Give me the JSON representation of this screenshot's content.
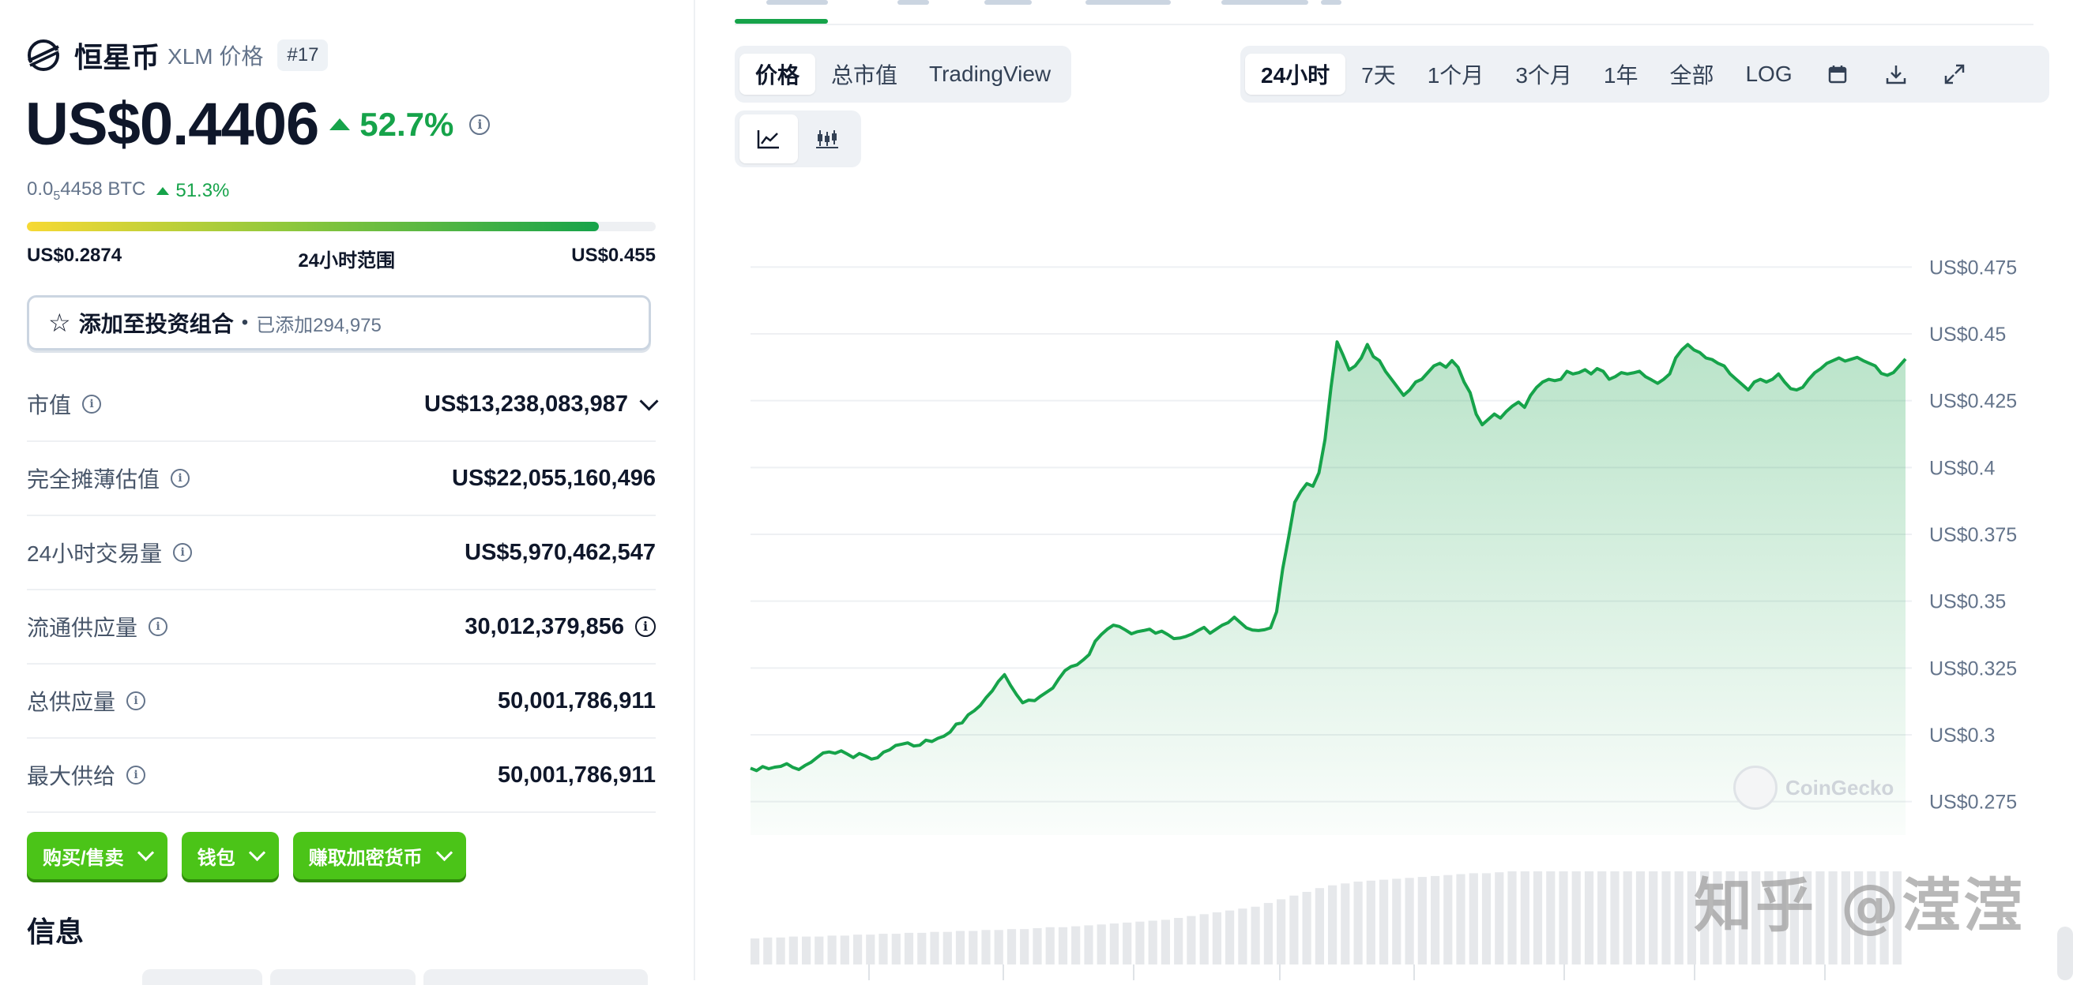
{
  "coin": {
    "name": "恒星币",
    "subtitle": "XLM 价格",
    "rank": "#17",
    "price": "US$0.4406",
    "change_24h": "52.7%",
    "btc_price_prefix": "0.0",
    "btc_price_sub": "5",
    "btc_price_suffix": "4458 BTC",
    "btc_change": "51.3%"
  },
  "range": {
    "low": "US$0.2874",
    "label": "24小时范围",
    "high": "US$0.455",
    "fill_percent": 91
  },
  "portfolio": {
    "label": "添加至投资组合",
    "dot": "•",
    "added": "已添加294,975"
  },
  "stats": [
    {
      "label": "市值",
      "value": "US$13,238,083,987"
    },
    {
      "label": "完全摊薄估值",
      "value": "US$22,055,160,496"
    },
    {
      "label": "24小时交易量",
      "value": "US$5,970,462,547"
    },
    {
      "label": "流通供应量",
      "value": "30,012,379,856"
    },
    {
      "label": "总供应量",
      "value": "50,001,786,911"
    },
    {
      "label": "最大供给",
      "value": "50,001,786,911"
    }
  ],
  "actions": {
    "buy_sell": "购买/售卖",
    "wallet": "钱包",
    "earn": "赚取加密货币"
  },
  "info_heading": "信息",
  "chart_tabs": {
    "price": "价格",
    "market_cap": "总市值",
    "tradingview": "TradingView"
  },
  "time_ranges": [
    "24小时",
    "7天",
    "1个月",
    "3个月",
    "1年",
    "全部",
    "LOG"
  ],
  "active_time_range": "24小时",
  "icons": {
    "logo": "stellar-logo-icon",
    "calendar": "calendar-icon",
    "download": "download-icon",
    "expand": "expand-icon",
    "line_chart": "line-chart-icon",
    "candle_chart": "candlestick-chart-icon"
  },
  "colors": {
    "accent_green": "#16a34a",
    "button_green": "#4bc418",
    "text_dark": "#0f172a",
    "text_muted": "#64748b"
  },
  "watermarks": {
    "coingecko": "CoinGecko",
    "zhihu": "知乎 @滢滢"
  },
  "chart_data": {
    "type": "area",
    "title": "",
    "xlabel": "",
    "ylabel": "",
    "ylim": [
      0.2625,
      0.4875
    ],
    "y_ticks": [
      0.475,
      0.45,
      0.425,
      0.4,
      0.375,
      0.35,
      0.325,
      0.3,
      0.275
    ],
    "y_tick_labels": [
      "US$0.475",
      "US$0.45",
      "US$0.425",
      "US$0.4",
      "US$0.375",
      "US$0.35",
      "US$0.325",
      "US$0.3",
      "US$0.275"
    ],
    "series": [
      {
        "values": [
          0.2875,
          0.2866,
          0.2881,
          0.2873,
          0.2879,
          0.2882,
          0.2892,
          0.2878,
          0.287,
          0.2885,
          0.2897,
          0.2915,
          0.2932,
          0.2936,
          0.2931,
          0.294,
          0.2928,
          0.2915,
          0.293,
          0.2921,
          0.2909,
          0.2914,
          0.2935,
          0.2944,
          0.296,
          0.2965,
          0.297,
          0.2958,
          0.2961,
          0.298,
          0.2975,
          0.2987,
          0.2995,
          0.301,
          0.304,
          0.3045,
          0.3075,
          0.309,
          0.311,
          0.314,
          0.3165,
          0.32,
          0.3225,
          0.3185,
          0.315,
          0.312,
          0.313,
          0.3128,
          0.3145,
          0.316,
          0.3175,
          0.321,
          0.324,
          0.3255,
          0.3262,
          0.328,
          0.33,
          0.335,
          0.3375,
          0.3395,
          0.341,
          0.3405,
          0.3392,
          0.3378,
          0.3386,
          0.339,
          0.3395,
          0.338,
          0.3388,
          0.3375,
          0.336,
          0.3362,
          0.3368,
          0.3377,
          0.339,
          0.3402,
          0.338,
          0.3395,
          0.341,
          0.342,
          0.344,
          0.342,
          0.34,
          0.3392,
          0.339,
          0.3393,
          0.34,
          0.346,
          0.362,
          0.374,
          0.387,
          0.391,
          0.394,
          0.393,
          0.398,
          0.4105,
          0.43,
          0.447,
          0.442,
          0.4365,
          0.438,
          0.441,
          0.446,
          0.4415,
          0.44,
          0.436,
          0.433,
          0.43,
          0.427,
          0.429,
          0.432,
          0.433,
          0.4355,
          0.438,
          0.439,
          0.4375,
          0.44,
          0.4375,
          0.432,
          0.428,
          0.42,
          0.416,
          0.418,
          0.42,
          0.4185,
          0.421,
          0.423,
          0.4245,
          0.4225,
          0.427,
          0.43,
          0.432,
          0.433,
          0.4325,
          0.433,
          0.436,
          0.435,
          0.4355,
          0.4366,
          0.435,
          0.437,
          0.436,
          0.433,
          0.434,
          0.4355,
          0.435,
          0.4354,
          0.436,
          0.434,
          0.4328,
          0.4315,
          0.433,
          0.435,
          0.441,
          0.444,
          0.446,
          0.444,
          0.443,
          0.441,
          0.4404,
          0.439,
          0.438,
          0.435,
          0.433,
          0.431,
          0.429,
          0.432,
          0.433,
          0.432,
          0.433,
          0.435,
          0.432,
          0.4295,
          0.429,
          0.43,
          0.433,
          0.4355,
          0.437,
          0.439,
          0.44,
          0.441,
          0.4398,
          0.4405,
          0.4412,
          0.44,
          0.439,
          0.438,
          0.4352,
          0.4345,
          0.4355,
          0.438,
          0.4406
        ]
      }
    ],
    "volume_relative": [
      0.28,
      0.29,
      0.29,
      0.3,
      0.3,
      0.3,
      0.31,
      0.31,
      0.32,
      0.32,
      0.33,
      0.33,
      0.34,
      0.34,
      0.35,
      0.35,
      0.36,
      0.36,
      0.37,
      0.37,
      0.38,
      0.38,
      0.39,
      0.4,
      0.4,
      0.41,
      0.42,
      0.43,
      0.44,
      0.45,
      0.46,
      0.47,
      0.48,
      0.5,
      0.52,
      0.54,
      0.56,
      0.58,
      0.6,
      0.62,
      0.66,
      0.7,
      0.74,
      0.78,
      0.82,
      0.85,
      0.87,
      0.89,
      0.9,
      0.91,
      0.92,
      0.93,
      0.94,
      0.95,
      0.96,
      0.97,
      0.98,
      0.98,
      0.99,
      1.0,
      1.0,
      1.0,
      1.0,
      1.0,
      1.0,
      1.0,
      1.0,
      1.0,
      1.0,
      1.0,
      1.0,
      1.0,
      1.0,
      1.0,
      1.0,
      1.0,
      1.0,
      1.0,
      1.0,
      1.0,
      1.0,
      1.0,
      1.0,
      1.0,
      1.0,
      1.0,
      1.0,
      1.0,
      1.0,
      1.0
    ]
  }
}
